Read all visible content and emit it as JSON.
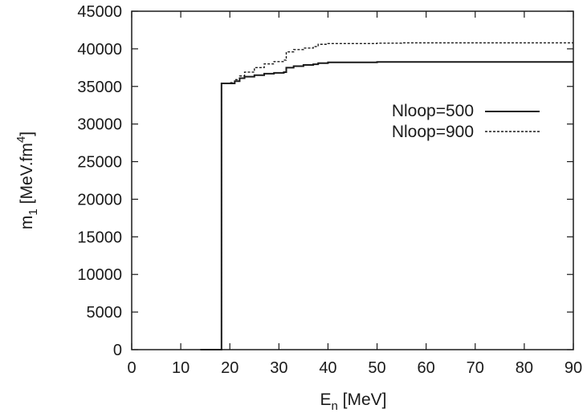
{
  "chart_data": {
    "type": "line",
    "xlabel": {
      "main": "E",
      "sub": "n",
      "rest": " [MeV]"
    },
    "ylabel": {
      "main": "m",
      "sub": "1",
      "rest1": " [MeV.fm",
      "sup": "4",
      "rest2": "]"
    },
    "xlim": [
      0,
      90
    ],
    "ylim": [
      0,
      45000
    ],
    "xticks": [
      0,
      10,
      20,
      30,
      40,
      50,
      60,
      70,
      80,
      90
    ],
    "yticks": [
      0,
      5000,
      10000,
      15000,
      20000,
      25000,
      30000,
      35000,
      40000,
      45000
    ],
    "grid": false,
    "legend_position": "right",
    "series": [
      {
        "name": "Nloop=500",
        "style": "solid",
        "color": "#1a1a1a",
        "x": [
          14,
          18.3,
          18.3,
          20,
          21,
          22,
          23,
          25,
          27,
          29,
          31,
          31.5,
          33,
          35,
          37,
          38,
          40,
          50,
          60,
          70,
          80,
          90
        ],
        "y": [
          0,
          0,
          35400,
          35400,
          35700,
          36100,
          36300,
          36500,
          36700,
          36800,
          36900,
          37500,
          37700,
          37850,
          37950,
          38100,
          38200,
          38250,
          38250,
          38250,
          38250,
          38250
        ]
      },
      {
        "name": "Nloop=900",
        "style": "dashed",
        "color": "#1a1a1a",
        "x": [
          14,
          18.3,
          18.3,
          20,
          21,
          22,
          23,
          25,
          27,
          29,
          31,
          31.5,
          33,
          35,
          37,
          38,
          40,
          50,
          55,
          60,
          70,
          80,
          90
        ],
        "y": [
          0,
          0,
          35400,
          35500,
          35900,
          36400,
          36900,
          37500,
          38000,
          38300,
          38500,
          39600,
          39900,
          40100,
          40300,
          40600,
          40700,
          40750,
          40800,
          40800,
          40800,
          40800,
          40800
        ]
      }
    ]
  }
}
